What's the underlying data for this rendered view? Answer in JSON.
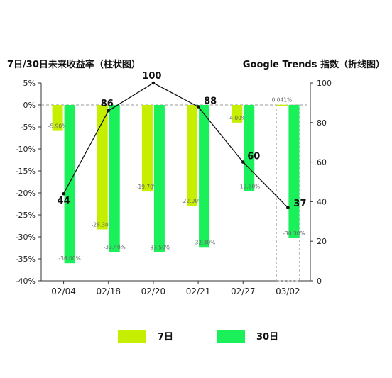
{
  "chart_data": {
    "type": "bar+line",
    "title_left": "7日/30日未来收益率（柱状图）",
    "title_right": "Google Trends 指数（折线图）",
    "categories": [
      "02/04",
      "02/18",
      "02/20",
      "02/21",
      "02/27",
      "03/02"
    ],
    "series": [
      {
        "name": "7日",
        "type": "bar",
        "axis": "left",
        "color": "#c6ef00",
        "values": [
          -5.9,
          -28.3,
          -19.7,
          -22.9,
          -4.0,
          0.041
        ],
        "labels": [
          "-5.90%",
          "-28.30%",
          "-19.70%",
          "-22.90%",
          "-4.00%",
          "0.041%"
        ]
      },
      {
        "name": "30日",
        "type": "bar",
        "axis": "left",
        "color": "#19f05a",
        "values": [
          -36.0,
          -33.4,
          -33.5,
          -32.3,
          -19.6,
          -30.3
        ],
        "labels": [
          "-36.00%",
          "-33.40%",
          "-33.50%",
          "-32.30%",
          "-19.60%",
          "-30.30%"
        ]
      },
      {
        "name": "Google Trends",
        "type": "line",
        "axis": "right",
        "color": "#111111",
        "values": [
          44,
          86,
          100,
          88,
          60,
          37
        ],
        "labels": [
          "44",
          "86",
          "100",
          "88",
          "60",
          "37"
        ]
      }
    ],
    "y_left": {
      "lim": [
        -40,
        5
      ],
      "ticks": [
        5,
        0,
        -5,
        -10,
        -15,
        -20,
        -25,
        -30,
        -35,
        -40
      ],
      "tick_labels": [
        "5%",
        "0%",
        "-5%",
        "-10%",
        "-15%",
        "-20%",
        "-25%",
        "-30%",
        "-35%",
        "-40%"
      ]
    },
    "y_right": {
      "lim": [
        0,
        100
      ],
      "ticks": [
        100,
        80,
        60,
        40,
        20,
        0
      ],
      "tick_labels": [
        "100",
        "80",
        "60",
        "40",
        "20",
        "0"
      ]
    },
    "zero_line": "dashed",
    "highlight_category": "03/02",
    "grid": false,
    "legend_position": "bottom"
  },
  "legend": [
    {
      "label": "7日",
      "color": "#c6ef00"
    },
    {
      "label": "30日",
      "color": "#19f05a"
    }
  ]
}
